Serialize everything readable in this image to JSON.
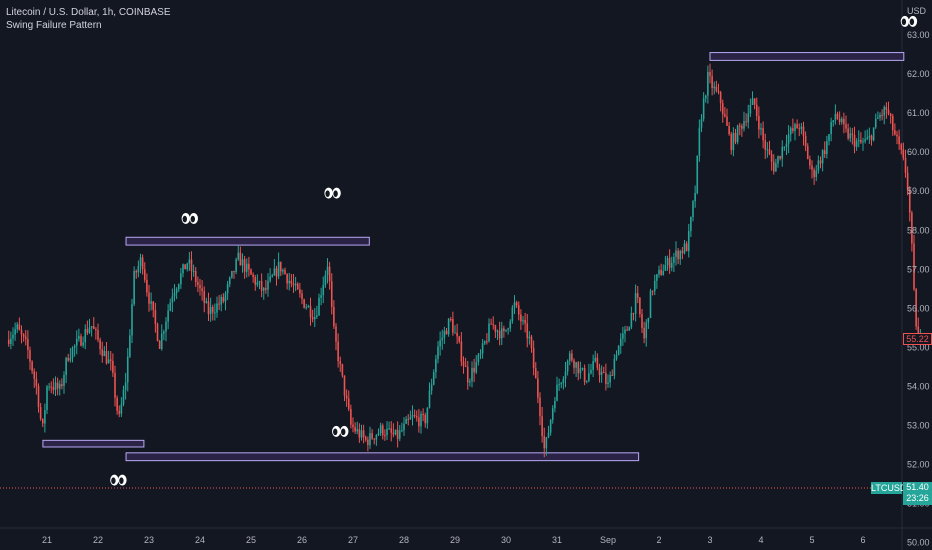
{
  "header": {
    "symbol_line": "Litecoin / U.S. Dollar, 1h, COINBASE",
    "indicator": "Swing Failure Pattern"
  },
  "axis": {
    "currency": "USD"
  },
  "colors": {
    "background": "#131722",
    "up": "#26a69a",
    "down": "#ef5350",
    "box_stroke": "#b9a9f5",
    "box_fill": "#2a2346",
    "price_line": "#ef5350"
  },
  "price_tags": {
    "symbol": "LTCUSD",
    "current_price": "51.40",
    "countdown": "23:26",
    "last_close": "55.22"
  },
  "chart_data": {
    "type": "candlestick",
    "title": "Litecoin / U.S. Dollar, 1h, COINBASE",
    "ylabel": "USD",
    "ylim": [
      49.8,
      63.6
    ],
    "y_ticks": [
      50.0,
      51.0,
      52.0,
      53.0,
      54.0,
      55.0,
      56.0,
      57.0,
      58.0,
      59.0,
      60.0,
      61.0,
      62.0,
      63.0
    ],
    "x_ticks": [
      "21",
      "22",
      "23",
      "24",
      "25",
      "26",
      "27",
      "28",
      "29",
      "30",
      "31",
      "Sep",
      "2",
      "3",
      "4",
      "5",
      "6"
    ],
    "x_range_days": [
      20.25,
      7.5
    ],
    "grid": false,
    "current_price": 51.4,
    "price_path": [
      [
        20.25,
        55.2
      ],
      [
        20.45,
        55.5
      ],
      [
        20.65,
        55.0
      ],
      [
        20.85,
        53.9
      ],
      [
        20.95,
        52.8
      ],
      [
        21.05,
        54.1
      ],
      [
        21.3,
        53.9
      ],
      [
        21.45,
        54.8
      ],
      [
        21.7,
        55.2
      ],
      [
        21.9,
        55.6
      ],
      [
        22.1,
        55.0
      ],
      [
        22.3,
        54.5
      ],
      [
        22.45,
        53.1
      ],
      [
        22.6,
        54.3
      ],
      [
        22.75,
        56.8
      ],
      [
        22.9,
        57.3
      ],
      [
        23.0,
        56.5
      ],
      [
        23.25,
        55.1
      ],
      [
        23.5,
        56.4
      ],
      [
        23.8,
        57.2
      ],
      [
        24.0,
        56.6
      ],
      [
        24.2,
        55.9
      ],
      [
        24.5,
        56.2
      ],
      [
        24.8,
        57.3
      ],
      [
        25.0,
        56.9
      ],
      [
        25.3,
        56.4
      ],
      [
        25.6,
        57.1
      ],
      [
        25.85,
        56.6
      ],
      [
        26.05,
        56.2
      ],
      [
        26.3,
        55.8
      ],
      [
        26.55,
        57.2
      ],
      [
        26.65,
        55.5
      ],
      [
        26.8,
        54.4
      ],
      [
        27.0,
        53.0
      ],
      [
        27.3,
        52.6
      ],
      [
        27.6,
        52.9
      ],
      [
        27.9,
        52.7
      ],
      [
        28.2,
        53.2
      ],
      [
        28.45,
        53.1
      ],
      [
        28.7,
        55.0
      ],
      [
        28.95,
        55.7
      ],
      [
        29.1,
        55.1
      ],
      [
        29.3,
        54.2
      ],
      [
        29.55,
        54.8
      ],
      [
        29.75,
        55.6
      ],
      [
        30.0,
        55.3
      ],
      [
        30.2,
        56.1
      ],
      [
        30.5,
        55.2
      ],
      [
        30.7,
        53.5
      ],
      [
        30.8,
        52.3
      ],
      [
        31.0,
        53.8
      ],
      [
        31.3,
        54.8
      ],
      [
        31.6,
        54.2
      ],
      [
        31.8,
        54.6
      ],
      [
        32.05,
        54.0
      ],
      [
        32.2,
        54.9
      ],
      [
        32.4,
        55.4
      ],
      [
        32.6,
        56.3
      ],
      [
        32.75,
        55.2
      ],
      [
        32.9,
        56.5
      ],
      [
        33.1,
        57.0
      ],
      [
        33.4,
        57.4
      ],
      [
        33.6,
        57.6
      ],
      [
        33.75,
        59.0
      ],
      [
        33.85,
        60.8
      ],
      [
        34.0,
        61.9
      ],
      [
        34.25,
        61.3
      ],
      [
        34.45,
        60.2
      ],
      [
        34.7,
        60.8
      ],
      [
        34.9,
        61.3
      ],
      [
        35.1,
        60.2
      ],
      [
        35.3,
        59.6
      ],
      [
        35.55,
        60.4
      ],
      [
        35.8,
        60.7
      ],
      [
        36.05,
        59.4
      ],
      [
        36.3,
        60.1
      ],
      [
        36.5,
        61.0
      ],
      [
        36.7,
        60.5
      ],
      [
        36.95,
        60.2
      ],
      [
        37.15,
        60.3
      ],
      [
        37.35,
        60.9
      ],
      [
        37.5,
        61.1
      ],
      [
        37.65,
        60.5
      ],
      [
        37.8,
        59.9
      ],
      [
        37.9,
        59.4
      ],
      [
        37.95,
        58.6
      ],
      [
        38.0,
        57.5
      ],
      [
        38.05,
        56.1
      ],
      [
        38.1,
        55.4
      ],
      [
        38.13,
        55.22
      ]
    ],
    "annotations": {
      "zones": [
        {
          "from_day": 20.92,
          "to_day": 22.9,
          "low": 52.45,
          "high": 52.62
        },
        {
          "from_day": 22.55,
          "to_day": 32.6,
          "low": 52.1,
          "high": 52.3
        },
        {
          "from_day": 22.55,
          "to_day": 27.32,
          "low": 57.62,
          "high": 57.82
        },
        {
          "from_day": 34.0,
          "to_day": 37.8,
          "low": 62.35,
          "high": 62.55
        }
      ],
      "eye_markers": [
        {
          "day": 22.4,
          "price": 51.6
        },
        {
          "day": 23.8,
          "price": 58.3
        },
        {
          "day": 26.6,
          "price": 58.95
        },
        {
          "day": 26.75,
          "price": 52.85
        },
        {
          "day": 37.9,
          "price": 63.35
        }
      ]
    }
  }
}
